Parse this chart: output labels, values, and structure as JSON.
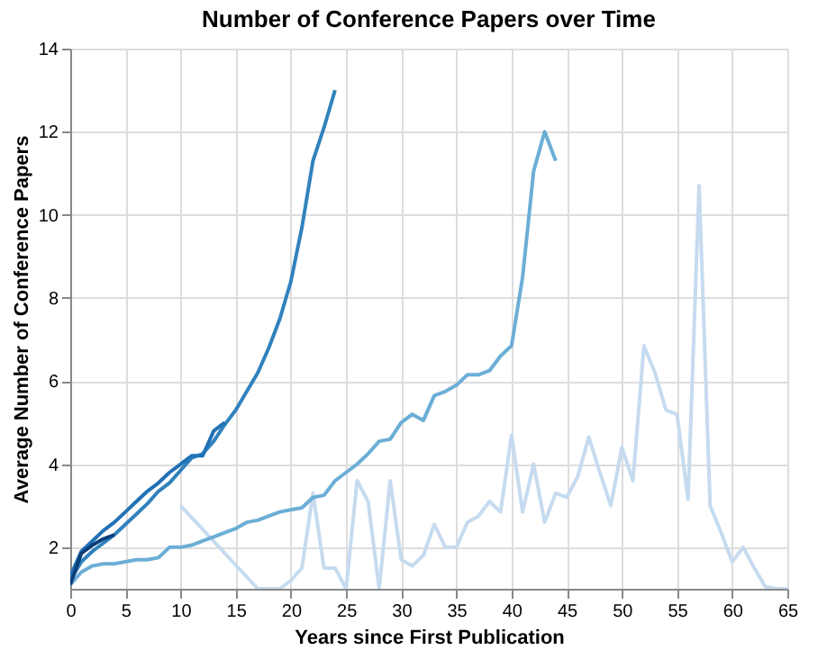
{
  "chart_data": {
    "type": "line",
    "title": "Number of Conference Papers over Time",
    "xlabel": "Years since First Publication",
    "ylabel": "Average Number of Conference Papers",
    "xlim": [
      0,
      65
    ],
    "xticks": [
      0,
      5,
      10,
      15,
      20,
      25,
      30,
      35,
      40,
      45,
      50,
      55,
      60,
      65
    ],
    "ylim": [
      1,
      14
    ],
    "yticks": [
      2,
      4,
      6,
      8,
      10,
      12,
      14
    ],
    "grid": true,
    "marker": "none",
    "line_style": "solid",
    "series": [
      {
        "color": "#c6dbef",
        "x": [
          10,
          17,
          18,
          19,
          20,
          21,
          22,
          23,
          24,
          25,
          26,
          27,
          28,
          29,
          30,
          31,
          32,
          33,
          34,
          35,
          36,
          37,
          38,
          39,
          40,
          41,
          42,
          43,
          44,
          45,
          46,
          47,
          48,
          49,
          50,
          51,
          52,
          53,
          54,
          55,
          56,
          57,
          58,
          59,
          60,
          61,
          62,
          63,
          64,
          65
        ],
        "values": [
          3.0,
          1.0,
          1.0,
          1.0,
          1.2,
          1.5,
          3.3,
          1.5,
          1.5,
          1.0,
          3.6,
          3.1,
          1.0,
          3.6,
          1.7,
          1.55,
          1.8,
          2.55,
          2.0,
          2.0,
          2.6,
          2.75,
          3.1,
          2.85,
          4.7,
          2.85,
          4.0,
          2.6,
          3.3,
          3.2,
          3.7,
          4.65,
          3.8,
          3.0,
          4.4,
          3.6,
          6.85,
          6.2,
          5.3,
          5.2,
          3.15,
          10.7,
          3.0,
          2.35,
          1.65,
          2.0,
          1.5,
          1.05,
          1.0,
          1.0
        ]
      },
      {
        "color": "#6baed6",
        "x": [
          0,
          1,
          2,
          3,
          4,
          5,
          6,
          7,
          8,
          9,
          10,
          11,
          12,
          13,
          14,
          15,
          16,
          17,
          18,
          19,
          20,
          21,
          22,
          23,
          24,
          25,
          26,
          27,
          28,
          29,
          30,
          31,
          32,
          33,
          34,
          35,
          36,
          37,
          38,
          39,
          40,
          41,
          42,
          43,
          44
        ],
        "values": [
          1.1,
          1.4,
          1.55,
          1.6,
          1.6,
          1.65,
          1.7,
          1.7,
          1.75,
          2.0,
          2.0,
          2.05,
          2.15,
          2.25,
          2.35,
          2.45,
          2.6,
          2.65,
          2.75,
          2.85,
          2.9,
          2.95,
          3.2,
          3.25,
          3.6,
          3.8,
          4.0,
          4.25,
          4.55,
          4.6,
          5.0,
          5.2,
          5.05,
          5.65,
          5.75,
          5.9,
          6.15,
          6.15,
          6.25,
          6.6,
          6.85,
          8.5,
          11.05,
          12.0,
          11.3
        ]
      },
      {
        "color": "#3182bd",
        "x": [
          0,
          1,
          2,
          3,
          4,
          5,
          6,
          7,
          8,
          9,
          10,
          11,
          12,
          13,
          14,
          15,
          16,
          17,
          18,
          19,
          20,
          21,
          22,
          23,
          24
        ],
        "values": [
          1.2,
          1.65,
          1.9,
          2.1,
          2.3,
          2.55,
          2.8,
          3.05,
          3.35,
          3.55,
          3.85,
          4.15,
          4.25,
          4.55,
          4.95,
          5.3,
          5.75,
          6.2,
          6.8,
          7.5,
          8.4,
          9.7,
          11.3,
          12.1,
          13.0
        ]
      },
      {
        "color": "#2171b5",
        "x": [
          0,
          1,
          2,
          3,
          4,
          5,
          6,
          7,
          8,
          9,
          10,
          11,
          12,
          13,
          14
        ],
        "values": [
          1.3,
          1.9,
          2.15,
          2.4,
          2.6,
          2.85,
          3.1,
          3.35,
          3.55,
          3.8,
          4.0,
          4.2,
          4.2,
          4.8,
          5.0
        ]
      },
      {
        "color": "#0b3e7a",
        "x": [
          0,
          1,
          2,
          3,
          4
        ],
        "values": [
          1.1,
          1.85,
          2.05,
          2.2,
          2.3
        ]
      }
    ]
  }
}
